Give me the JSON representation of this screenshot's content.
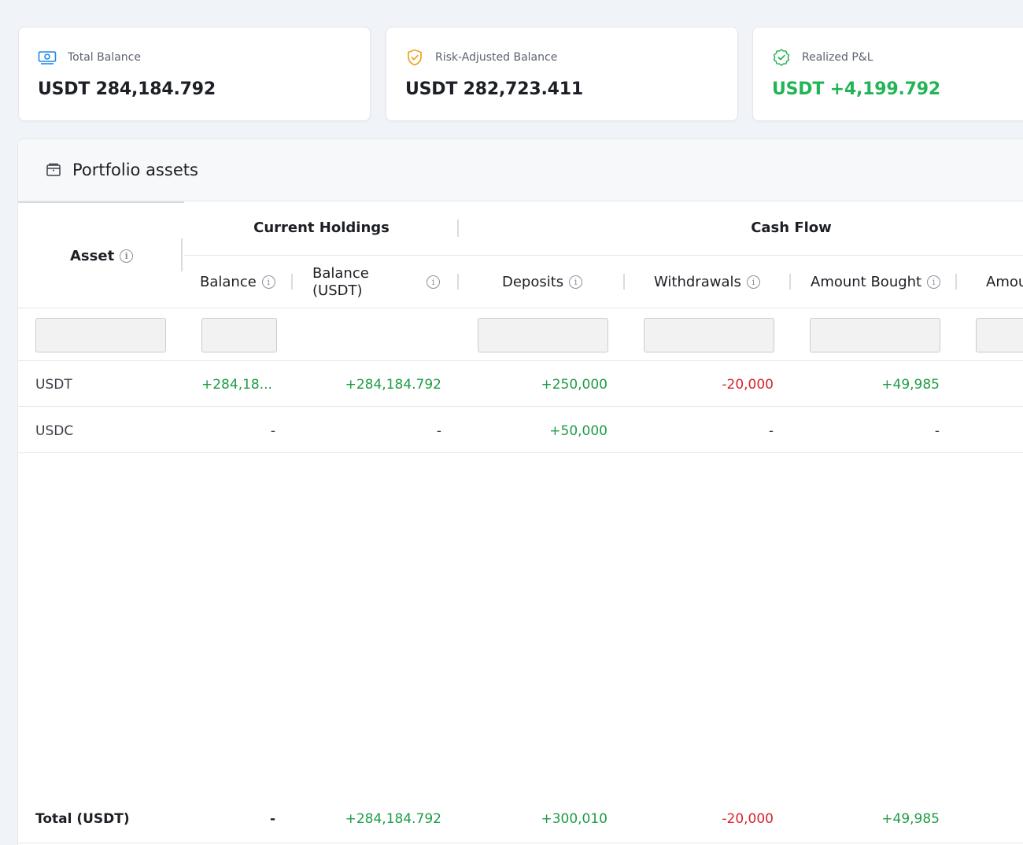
{
  "cards": [
    {
      "label": "Total Balance",
      "value": "USDT 284,184.792",
      "icon": "money-icon"
    },
    {
      "label": "Risk-Adjusted Balance",
      "value": "USDT 282,723.411",
      "icon": "shield-check-icon"
    },
    {
      "label": "Realized P&L",
      "value": "USDT +4,199.792",
      "icon": "check-circle-icon"
    }
  ],
  "colors": {
    "accent": "#22b455",
    "positive": "#1e9c45",
    "negative": "#d6242d",
    "shield": "#f0a020",
    "money": "#1e88e5"
  },
  "panel": {
    "title": "Portfolio assets",
    "icon": "wallet-icon"
  },
  "table": {
    "group_headers": [
      "Current Holdings",
      "Cash Flow"
    ],
    "asset_header": "Asset",
    "columns": [
      "Balance",
      "Balance\n(USDT)",
      "Deposits",
      "Withdrawals",
      "Amount Bought",
      "Amou"
    ],
    "rows": [
      {
        "asset": "USDT",
        "balance": "+284,18...",
        "balance_usdt": "+284,184.792",
        "deposits": "+250,000",
        "withdrawals": "-20,000",
        "amount_bought": "+49,985"
      },
      {
        "asset": "USDC",
        "balance": "-",
        "balance_usdt": "-",
        "deposits": "+50,000",
        "withdrawals": "-",
        "amount_bought": "-"
      }
    ],
    "total": {
      "label": "Total (USDT)",
      "balance": "-",
      "balance_usdt": "+284,184.792",
      "deposits": "+300,010",
      "withdrawals": "-20,000",
      "amount_bought": "+49,985"
    }
  }
}
